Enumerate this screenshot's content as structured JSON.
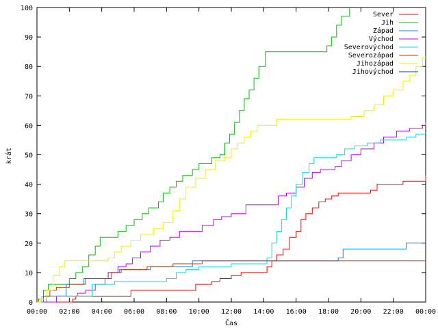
{
  "chart_data": {
    "type": "line",
    "xlabel": "Čas",
    "ylabel": "krát",
    "xlim": [
      0,
      24
    ],
    "ylim": [
      0,
      100
    ],
    "grid": false,
    "legend_position": "top-right",
    "x_ticks": [
      {
        "value": 0,
        "label": "00:00"
      },
      {
        "value": 2,
        "label": "02:00"
      },
      {
        "value": 4,
        "label": "04:00"
      },
      {
        "value": 6,
        "label": "06:00"
      },
      {
        "value": 8,
        "label": "08:00"
      },
      {
        "value": 10,
        "label": "10:00"
      },
      {
        "value": 12,
        "label": "12:00"
      },
      {
        "value": 14,
        "label": "14:00"
      },
      {
        "value": 16,
        "label": "16:00"
      },
      {
        "value": 18,
        "label": "18:00"
      },
      {
        "value": 20,
        "label": "20:00"
      },
      {
        "value": 22,
        "label": "22:00"
      },
      {
        "value": 24,
        "label": "00:00"
      }
    ],
    "y_ticks": [
      {
        "value": 0,
        "label": "0"
      },
      {
        "value": 10,
        "label": "10"
      },
      {
        "value": 20,
        "label": "20"
      },
      {
        "value": 30,
        "label": "30"
      },
      {
        "value": 40,
        "label": "40"
      },
      {
        "value": 50,
        "label": "50"
      },
      {
        "value": 60,
        "label": "60"
      },
      {
        "value": 70,
        "label": "70"
      },
      {
        "value": 80,
        "label": "80"
      },
      {
        "value": 90,
        "label": "90"
      },
      {
        "value": 100,
        "label": "100"
      }
    ],
    "series": [
      {
        "name": "Sever",
        "color": "#ff0000",
        "points": [
          [
            0,
            0
          ],
          [
            2,
            0
          ],
          [
            2.2,
            1
          ],
          [
            2.4,
            2
          ],
          [
            5,
            2
          ],
          [
            5.8,
            4
          ],
          [
            9.6,
            4
          ],
          [
            9.8,
            6
          ],
          [
            10.8,
            7
          ],
          [
            11.3,
            8
          ],
          [
            12,
            9
          ],
          [
            12.6,
            10
          ],
          [
            14.2,
            12
          ],
          [
            14.5,
            14
          ],
          [
            14.8,
            16
          ],
          [
            15.2,
            18
          ],
          [
            15.6,
            22
          ],
          [
            16,
            24
          ],
          [
            16.3,
            28
          ],
          [
            16.6,
            30
          ],
          [
            17,
            32
          ],
          [
            17.4,
            34
          ],
          [
            17.8,
            35
          ],
          [
            18.2,
            36
          ],
          [
            18.6,
            37
          ],
          [
            20.6,
            38
          ],
          [
            21,
            40
          ],
          [
            22.6,
            41
          ],
          [
            23.8,
            41
          ],
          [
            24,
            43
          ]
        ]
      },
      {
        "name": "Jih",
        "color": "#00c000",
        "points": [
          [
            0,
            0
          ],
          [
            0.4,
            4
          ],
          [
            0.7,
            6
          ],
          [
            1.8,
            6
          ],
          [
            2,
            8
          ],
          [
            2.4,
            10
          ],
          [
            2.8,
            12
          ],
          [
            3.2,
            16
          ],
          [
            3.6,
            19
          ],
          [
            3.9,
            22
          ],
          [
            4.7,
            22
          ],
          [
            5,
            24
          ],
          [
            5.5,
            26
          ],
          [
            6,
            28
          ],
          [
            6.5,
            30
          ],
          [
            6.9,
            32
          ],
          [
            7.5,
            34
          ],
          [
            7.8,
            37
          ],
          [
            8.2,
            39
          ],
          [
            8.6,
            41
          ],
          [
            9,
            43
          ],
          [
            9.6,
            45
          ],
          [
            10,
            47
          ],
          [
            10.6,
            47
          ],
          [
            10.8,
            49
          ],
          [
            11.3,
            50
          ],
          [
            11.6,
            54
          ],
          [
            11.9,
            57
          ],
          [
            12.2,
            61
          ],
          [
            12.5,
            65
          ],
          [
            12.8,
            69
          ],
          [
            13.1,
            72
          ],
          [
            13.4,
            76
          ],
          [
            13.7,
            80
          ],
          [
            14.1,
            85
          ],
          [
            17.6,
            85
          ],
          [
            17.9,
            87
          ],
          [
            18.2,
            90
          ],
          [
            18.5,
            94
          ],
          [
            18.8,
            97
          ],
          [
            19.3,
            100
          ]
        ]
      },
      {
        "name": "Západ",
        "color": "#0080ff",
        "points": [
          [
            0,
            0
          ],
          [
            0.6,
            2
          ],
          [
            1.4,
            2
          ],
          [
            1.8,
            6
          ],
          [
            2.6,
            6
          ],
          [
            2.9,
            8
          ],
          [
            4,
            8
          ],
          [
            4.4,
            10
          ],
          [
            5.1,
            11
          ],
          [
            7,
            12
          ],
          [
            9.4,
            12
          ],
          [
            9.6,
            14
          ],
          [
            14.4,
            14
          ],
          [
            15.2,
            14
          ],
          [
            18.6,
            15
          ],
          [
            18.9,
            18
          ],
          [
            22.5,
            18
          ],
          [
            22.8,
            20
          ],
          [
            24,
            20
          ]
        ]
      },
      {
        "name": "Východ",
        "color": "#c000ff",
        "points": [
          [
            0,
            0
          ],
          [
            0.8,
            0
          ],
          [
            1.2,
            2
          ],
          [
            2.2,
            2
          ],
          [
            2.5,
            3
          ],
          [
            3,
            4
          ],
          [
            3.6,
            6
          ],
          [
            4.2,
            8
          ],
          [
            4.6,
            10
          ],
          [
            5,
            12
          ],
          [
            5.5,
            13
          ],
          [
            5.9,
            15
          ],
          [
            6.4,
            17
          ],
          [
            7,
            19
          ],
          [
            7.6,
            21
          ],
          [
            8.2,
            22
          ],
          [
            8.8,
            24
          ],
          [
            10,
            24
          ],
          [
            10.2,
            26
          ],
          [
            10.9,
            28
          ],
          [
            11.4,
            29
          ],
          [
            12,
            30
          ],
          [
            12.6,
            30
          ],
          [
            12.9,
            33
          ],
          [
            14.6,
            33
          ],
          [
            14.9,
            36
          ],
          [
            15.4,
            37
          ],
          [
            16,
            39
          ],
          [
            16.5,
            42
          ],
          [
            17,
            44
          ],
          [
            17.5,
            45
          ],
          [
            18.4,
            46
          ],
          [
            18.8,
            48
          ],
          [
            19.4,
            50
          ],
          [
            20,
            52
          ],
          [
            20.8,
            54
          ],
          [
            21.4,
            56
          ],
          [
            22.2,
            58
          ],
          [
            23,
            59
          ],
          [
            23.8,
            60
          ],
          [
            24,
            61
          ]
        ]
      },
      {
        "name": "Severovýchod",
        "color": "#00e0f0",
        "points": [
          [
            0,
            0
          ],
          [
            0.3,
            2
          ],
          [
            2.4,
            2
          ],
          [
            3.4,
            6
          ],
          [
            4.4,
            6
          ],
          [
            4.8,
            7
          ],
          [
            7.6,
            7
          ],
          [
            8,
            8
          ],
          [
            8.6,
            10
          ],
          [
            9.2,
            11
          ],
          [
            10,
            12
          ],
          [
            11.5,
            12
          ],
          [
            12,
            13
          ],
          [
            13.8,
            13
          ],
          [
            14.2,
            15
          ],
          [
            14.5,
            20
          ],
          [
            14.8,
            24
          ],
          [
            15.1,
            28
          ],
          [
            15.4,
            32
          ],
          [
            15.7,
            36
          ],
          [
            16,
            40
          ],
          [
            16.4,
            44
          ],
          [
            16.8,
            47
          ],
          [
            17.1,
            49
          ],
          [
            18.5,
            50
          ],
          [
            19,
            52
          ],
          [
            19.6,
            53
          ],
          [
            20.4,
            54
          ],
          [
            21.2,
            55
          ],
          [
            22.8,
            56
          ],
          [
            23.4,
            57
          ],
          [
            24,
            57
          ]
        ]
      },
      {
        "name": "Severozápad",
        "color": "#c04000",
        "points": [
          [
            0,
            0
          ],
          [
            0.1,
            1
          ],
          [
            0.4,
            2
          ],
          [
            0.8,
            4
          ],
          [
            1.2,
            5
          ],
          [
            2,
            6
          ],
          [
            2.6,
            6
          ],
          [
            3,
            8
          ],
          [
            4.2,
            8
          ],
          [
            4.4,
            10
          ],
          [
            5.2,
            11
          ],
          [
            6.4,
            11
          ],
          [
            6.8,
            12
          ],
          [
            8.4,
            13
          ],
          [
            9.8,
            13
          ],
          [
            10.2,
            14
          ],
          [
            11.4,
            14
          ],
          [
            11.8,
            14
          ],
          [
            13.4,
            14
          ],
          [
            14.4,
            14
          ],
          [
            24,
            14
          ]
        ]
      },
      {
        "name": "Jihozápad",
        "color": "#f0f000",
        "points": [
          [
            0,
            0
          ],
          [
            0.2,
            1
          ],
          [
            0.6,
            4
          ],
          [
            1,
            9
          ],
          [
            1.4,
            12
          ],
          [
            1.7,
            14
          ],
          [
            3.6,
            14
          ],
          [
            4.4,
            15
          ],
          [
            4.8,
            17
          ],
          [
            5.2,
            19
          ],
          [
            5.8,
            21
          ],
          [
            6.4,
            23
          ],
          [
            7.2,
            25
          ],
          [
            7.8,
            27
          ],
          [
            8.4,
            31
          ],
          [
            8.8,
            35
          ],
          [
            9.2,
            39
          ],
          [
            9.8,
            42
          ],
          [
            10.4,
            45
          ],
          [
            11,
            48
          ],
          [
            11.6,
            49
          ],
          [
            12,
            52
          ],
          [
            12.4,
            54
          ],
          [
            12.8,
            56
          ],
          [
            13.2,
            58
          ],
          [
            13.6,
            60
          ],
          [
            14.4,
            60
          ],
          [
            14.8,
            62
          ],
          [
            18.6,
            62
          ],
          [
            19.4,
            63
          ],
          [
            20.2,
            65
          ],
          [
            20.8,
            67
          ],
          [
            21.4,
            70
          ],
          [
            22,
            72
          ],
          [
            22.6,
            75
          ],
          [
            23,
            77
          ],
          [
            23.4,
            80
          ],
          [
            23.8,
            83
          ],
          [
            24,
            83
          ]
        ]
      },
      {
        "name": "Jihovýchod",
        "color": "#0040c0",
        "points": []
      }
    ]
  }
}
